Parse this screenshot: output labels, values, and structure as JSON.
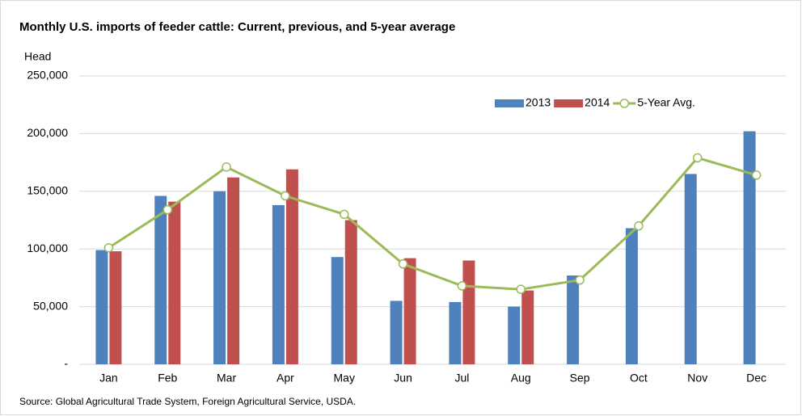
{
  "chart_data": {
    "type": "bar",
    "title": "Monthly U.S. imports of feeder cattle: Current, previous, and 5-year average",
    "y_label": "Head",
    "source": "Source: Global Agricultural Trade System, Foreign Agricultural Service, USDA.",
    "categories": [
      "Jan",
      "Feb",
      "Mar",
      "Apr",
      "May",
      "Jun",
      "Jul",
      "Aug",
      "Sep",
      "Oct",
      "Nov",
      "Dec"
    ],
    "series": [
      {
        "name": "2013",
        "type": "bar",
        "color": "#4f81bd",
        "values": [
          99000,
          146000,
          150000,
          138000,
          93000,
          55000,
          54000,
          50000,
          77000,
          118000,
          165000,
          202000
        ]
      },
      {
        "name": "2014",
        "type": "bar",
        "color": "#c0504d",
        "values": [
          98000,
          141000,
          162000,
          169000,
          125000,
          92000,
          90000,
          64000,
          null,
          null,
          null,
          null
        ]
      },
      {
        "name": "5-Year Avg.",
        "type": "line",
        "color": "#9bbb59",
        "values": [
          101000,
          134000,
          171000,
          146000,
          130000,
          87000,
          68000,
          65000,
          73000,
          120000,
          179000,
          164000
        ]
      }
    ],
    "ylim": [
      0,
      250000
    ],
    "yticks": [
      {
        "value": 0,
        "label": "-"
      },
      {
        "value": 50000,
        "label": "50,000"
      },
      {
        "value": 100000,
        "label": "100,000"
      },
      {
        "value": 150000,
        "label": "150,000"
      },
      {
        "value": 200000,
        "label": "200,000"
      },
      {
        "value": 250000,
        "label": "250,000"
      }
    ],
    "grid": true,
    "legend": "top-right"
  }
}
